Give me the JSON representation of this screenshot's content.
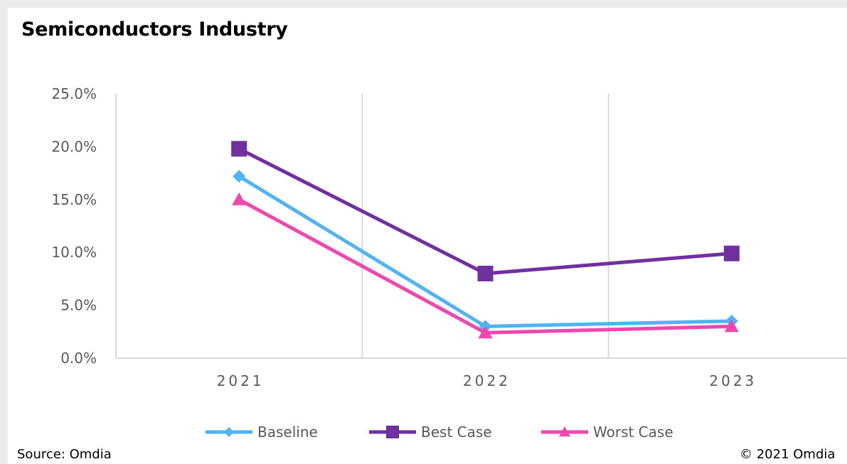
{
  "chart_data": {
    "type": "line",
    "title": "Semiconductors Industry",
    "categories": [
      "2021",
      "2022",
      "2023"
    ],
    "ylim": [
      0,
      25
    ],
    "yticks": [
      "0.0%",
      "5.0%",
      "10.0%",
      "15.0%",
      "20.0%",
      "25.0%"
    ],
    "ytick_values": [
      0,
      5,
      10,
      15,
      20,
      25
    ],
    "grid": "vertical category separators",
    "legend_position": "bottom",
    "series": [
      {
        "name": "Baseline",
        "values": [
          17.2,
          3.0,
          3.5
        ],
        "color": "#4fb3f6",
        "marker": "diamond"
      },
      {
        "name": "Best Case",
        "values": [
          19.8,
          8.0,
          9.9
        ],
        "color": "#7030a0",
        "marker": "square"
      },
      {
        "name": "Worst Case",
        "values": [
          15.0,
          2.4,
          3.0
        ],
        "color": "#ee47ad",
        "marker": "triangle"
      }
    ]
  },
  "footer": {
    "source": "Source: Omdia",
    "copyright": "© 2021 Omdia"
  }
}
